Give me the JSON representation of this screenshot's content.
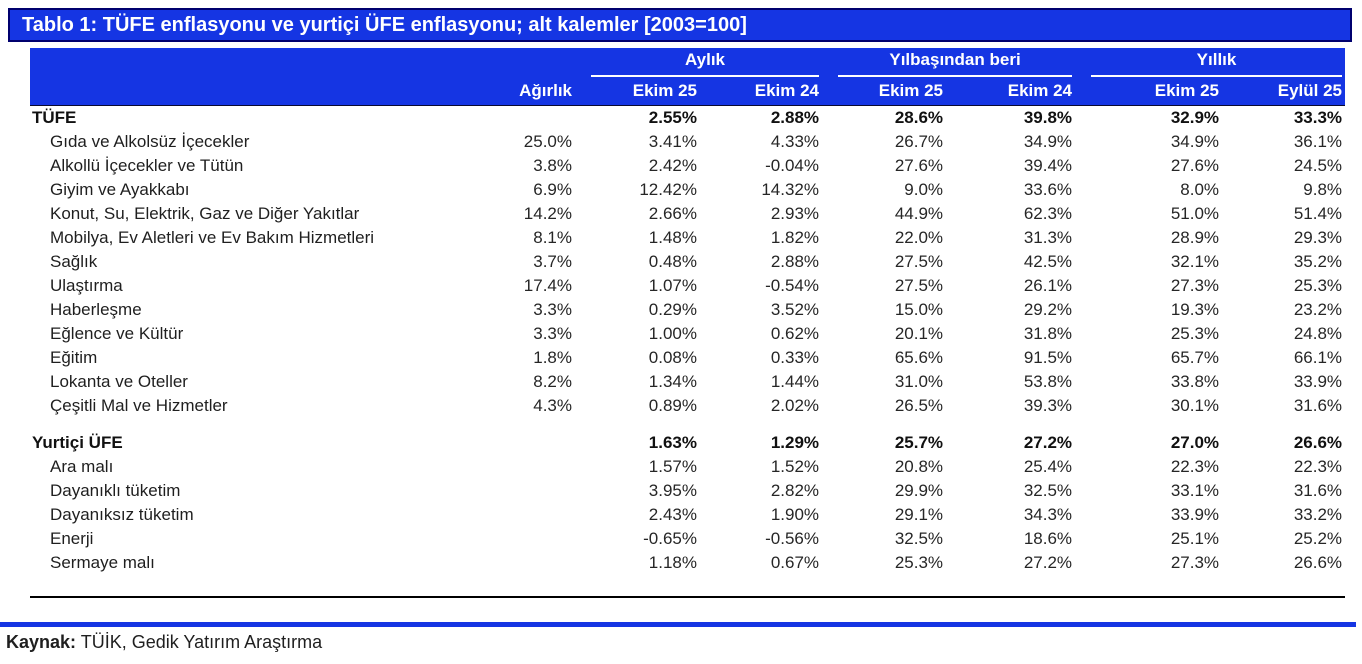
{
  "title": "Tablo 1: TÜFE enflasyonu ve yurtiçi ÜFE enflasyonu; alt kalemler [2003=100]",
  "colors": {
    "header_blue": "#1535e3",
    "title_border_navy": "#00006e",
    "body_text": "#1f1f1f",
    "rule_black": "#000000"
  },
  "table": {
    "weight_header": "Ağırlık",
    "groups": [
      {
        "label": "Aylık",
        "cols": [
          "Ekim 25",
          "Ekim 24"
        ]
      },
      {
        "label": "Yılbaşından beri",
        "cols": [
          "Ekim 25",
          "Ekim 24"
        ]
      },
      {
        "label": "Yıllık",
        "cols": [
          "Ekim 25",
          "Eylül 25"
        ]
      }
    ],
    "sections": [
      {
        "header_row": {
          "label": "TÜFE",
          "weight": "",
          "values": [
            "2.55%",
            "2.88%",
            "28.6%",
            "39.8%",
            "32.9%",
            "33.3%"
          ]
        },
        "rows": [
          {
            "label": "Gıda ve Alkolsüz İçecekler",
            "weight": "25.0%",
            "values": [
              "3.41%",
              "4.33%",
              "26.7%",
              "34.9%",
              "34.9%",
              "36.1%"
            ]
          },
          {
            "label": "Alkollü İçecekler ve Tütün",
            "weight": "3.8%",
            "values": [
              "2.42%",
              "-0.04%",
              "27.6%",
              "39.4%",
              "27.6%",
              "24.5%"
            ]
          },
          {
            "label": "Giyim ve Ayakkabı",
            "weight": "6.9%",
            "values": [
              "12.42%",
              "14.32%",
              "9.0%",
              "33.6%",
              "8.0%",
              "9.8%"
            ]
          },
          {
            "label": "Konut, Su, Elektrik, Gaz ve Diğer Yakıtlar",
            "weight": "14.2%",
            "values": [
              "2.66%",
              "2.93%",
              "44.9%",
              "62.3%",
              "51.0%",
              "51.4%"
            ]
          },
          {
            "label": "Mobilya, Ev Aletleri ve Ev Bakım Hizmetleri",
            "weight": "8.1%",
            "values": [
              "1.48%",
              "1.82%",
              "22.0%",
              "31.3%",
              "28.9%",
              "29.3%"
            ]
          },
          {
            "label": "Sağlık",
            "weight": "3.7%",
            "values": [
              "0.48%",
              "2.88%",
              "27.5%",
              "42.5%",
              "32.1%",
              "35.2%"
            ]
          },
          {
            "label": "Ulaştırma",
            "weight": "17.4%",
            "values": [
              "1.07%",
              "-0.54%",
              "27.5%",
              "26.1%",
              "27.3%",
              "25.3%"
            ]
          },
          {
            "label": "Haberleşme",
            "weight": "3.3%",
            "values": [
              "0.29%",
              "3.52%",
              "15.0%",
              "29.2%",
              "19.3%",
              "23.2%"
            ]
          },
          {
            "label": "Eğlence ve Kültür",
            "weight": "3.3%",
            "values": [
              "1.00%",
              "0.62%",
              "20.1%",
              "31.8%",
              "25.3%",
              "24.8%"
            ]
          },
          {
            "label": "Eğitim",
            "weight": "1.8%",
            "values": [
              "0.08%",
              "0.33%",
              "65.6%",
              "91.5%",
              "65.7%",
              "66.1%"
            ]
          },
          {
            "label": "Lokanta ve Oteller",
            "weight": "8.2%",
            "values": [
              "1.34%",
              "1.44%",
              "31.0%",
              "53.8%",
              "33.8%",
              "33.9%"
            ]
          },
          {
            "label": "Çeşitli Mal ve Hizmetler",
            "weight": "4.3%",
            "values": [
              "0.89%",
              "2.02%",
              "26.5%",
              "39.3%",
              "30.1%",
              "31.6%"
            ]
          }
        ]
      },
      {
        "header_row": {
          "label": "Yurtiçi ÜFE",
          "weight": "",
          "values": [
            "1.63%",
            "1.29%",
            "25.7%",
            "27.2%",
            "27.0%",
            "26.6%"
          ]
        },
        "rows": [
          {
            "label": "Ara malı",
            "weight": "",
            "values": [
              "1.57%",
              "1.52%",
              "20.8%",
              "25.4%",
              "22.3%",
              "22.3%"
            ]
          },
          {
            "label": "Dayanıklı tüketim",
            "weight": "",
            "values": [
              "3.95%",
              "2.82%",
              "29.9%",
              "32.5%",
              "33.1%",
              "31.6%"
            ]
          },
          {
            "label": "Dayanıksız tüketim",
            "weight": "",
            "values": [
              "2.43%",
              "1.90%",
              "29.1%",
              "34.3%",
              "33.9%",
              "33.2%"
            ]
          },
          {
            "label": "Enerji",
            "weight": "",
            "values": [
              "-0.65%",
              "-0.56%",
              "32.5%",
              "18.6%",
              "25.1%",
              "25.2%"
            ]
          },
          {
            "label": "Sermaye malı",
            "weight": "",
            "values": [
              "1.18%",
              "0.67%",
              "25.3%",
              "27.2%",
              "27.3%",
              "26.6%"
            ]
          }
        ]
      }
    ]
  },
  "footer": {
    "source_label": "Kaynak:",
    "source_text": " TÜİK, Gedik Yatırım Araştırma"
  }
}
